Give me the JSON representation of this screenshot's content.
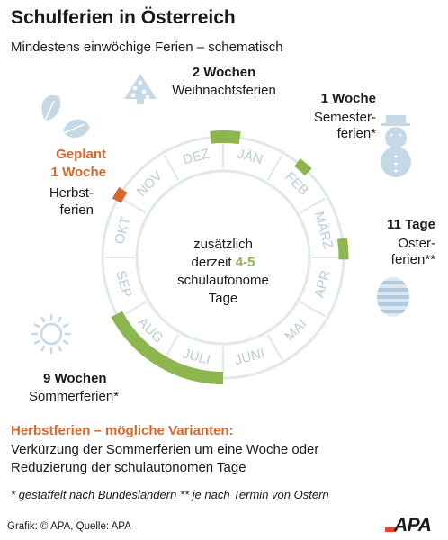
{
  "title": "Schulferien in Österreich",
  "subtitle": "Mindestens einwöchige Ferien – schematisch",
  "months": [
    "JÄN",
    "FEB",
    "MÄRZ",
    "APR",
    "MAI",
    "JUNI",
    "JULI",
    "AUG",
    "SEP",
    "OKT",
    "NOV",
    "DEZ"
  ],
  "breaks": {
    "christmas": {
      "duration": "2 Wochen",
      "name": "Weihnachtsferien"
    },
    "semester": {
      "duration": "1 Woche",
      "name_line1": "Semester-",
      "name_line2": "ferien*"
    },
    "easter": {
      "duration": "11 Tage",
      "name_line1": "Oster-",
      "name_line2": "ferien**"
    },
    "summer": {
      "duration": "9 Wochen",
      "name": "Sommerferien*"
    },
    "autumn": {
      "status": "Geplant",
      "duration": "1 Woche",
      "name_line1": "Herbst-",
      "name_line2": "ferien"
    }
  },
  "center": {
    "line1": "zusätzlich",
    "line2_prefix": "derzeit",
    "line2_value": "4-5",
    "line3": "schulautonome",
    "line4": "Tage"
  },
  "variants": {
    "title": "Herbstferien – mögliche Varianten:",
    "line1": "Verkürzung der Sommerferien um eine Woche oder",
    "line2": "Reduzierung der schulautonomen Tage"
  },
  "footnote": "* gestaffelt nach Bundesländern ** je nach Termin von Ostern",
  "credit": "Grafik: © APA, Quelle: APA",
  "logo": "APA",
  "colors": {
    "ring": "#dfe8ef",
    "month_text": "#b9ccda",
    "green": "#8db550",
    "orange": "#d9662d",
    "icon": "#c5d8e6",
    "logo_red": "#e2452a"
  },
  "icons": [
    "christmas-tree-icon",
    "snowman-icon",
    "easter-egg-icon",
    "sun-icon",
    "leaves-icon"
  ]
}
